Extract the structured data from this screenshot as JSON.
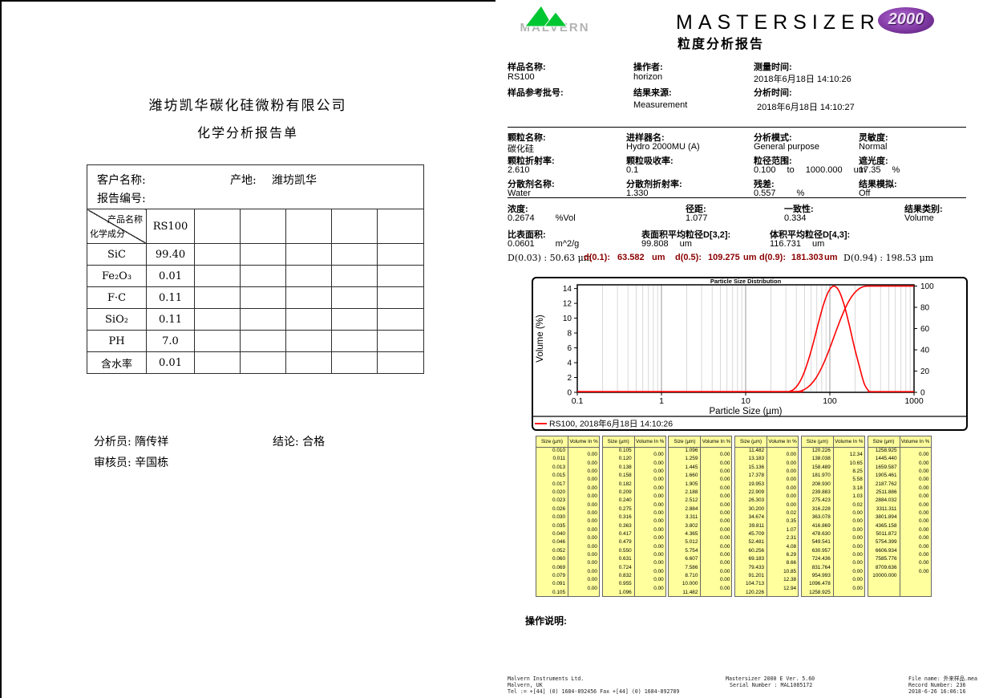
{
  "colors": {
    "curve_red": "#ff0000",
    "percentile_dark_red": "#8b0000",
    "table_yellow": "#ffff9e",
    "logo_green": "#00c632",
    "logo_purple": "#6a2c91",
    "logo_gray": "#b3b3b3"
  },
  "left_report": {
    "company": "潍坊凯华碳化硅微粉有限公司",
    "doc_title": "化学分析报告单",
    "customer_label": "客户名称:",
    "origin_label": "产地:",
    "origin_value": "潍坊凯华",
    "report_no_label": "报告编号:",
    "diagonal": {
      "top": "产品名称",
      "bottom": "化学成分"
    },
    "product_column": "RS100",
    "components": [
      {
        "name": "SiC",
        "value": "99.40"
      },
      {
        "name": "Fe₂O₃",
        "value": "0.01"
      },
      {
        "name": "F·C",
        "value": "0.11"
      },
      {
        "name": "SiO₂",
        "value": "0.11"
      },
      {
        "name": "PH",
        "value": "7.0"
      },
      {
        "name": "含水率",
        "value": "0.01"
      }
    ],
    "analyst_label": "分析员:",
    "analyst_name": "隋传祥",
    "conclusion_label": "结论:",
    "conclusion_value": "合格",
    "reviewer_label": "审核员:",
    "reviewer_name": "辛国栋"
  },
  "right_report": {
    "brand": {
      "logo_text": "MALVERN",
      "product": "MASTERSIZER",
      "model": "2000",
      "report_title": "粒度分析报告"
    },
    "sample_section": {
      "sample_name_label": "样品名称:",
      "sample_name": "RS100",
      "sample_ref_label": "样品参考批号:",
      "sample_ref": "",
      "operator_label": "操作者:",
      "operator": "horizon",
      "result_source_label": "结果来源:",
      "result_source": "Measurement",
      "measured_label": "测量时间:",
      "measured": "2018年6月18日 14:10:26",
      "analysed_label": "分析时间:",
      "analysed": "2018年6月18日 14:10:27"
    },
    "particle_section": {
      "particle_name_label": "颗粒名称:",
      "particle_name": "碳化硅",
      "particle_ri_label": "颗粒折射率:",
      "particle_ri": "2.610",
      "dispersant_label": "分散剂名称:",
      "dispersant": "Water",
      "accessory_label": "进样器名:",
      "accessory": "Hydro 2000MU (A)",
      "absorption_label": "颗粒吸收率:",
      "absorption": "0.1",
      "dispersant_ri_label": "分散剂折射率:",
      "dispersant_ri": "1.330",
      "analysis_model_label": "分析模式:",
      "analysis_model": "General purpose",
      "size_range_label": "粒径范围:",
      "size_range_from": "0.100",
      "size_range_to_word": "to",
      "size_range_to": "1000.000",
      "size_range_unit": "um",
      "residual_label": "残差:",
      "residual": "0.557",
      "residual_unit": "%",
      "sensitivity_label": "灵敏度:",
      "sensitivity": "Normal",
      "obscuration_label": "遮光度:",
      "obscuration": "17.35",
      "obscuration_unit": "%",
      "emulation_label": "结果模拟:",
      "emulation": "Off"
    },
    "result_section": {
      "concentration_label": "浓度:",
      "concentration": "0.2674",
      "concentration_unit": "%Vol",
      "span_label": "径距:",
      "span": "1.077",
      "uniformity_label": "一致性:",
      "uniformity": "0.334",
      "result_units_label": "结果类别:",
      "result_units": "Volume",
      "ssa_label": "比表面积:",
      "ssa": "0.0601",
      "ssa_unit": "m^2/g",
      "d32_label": "表面积平均粒径D[3,2]:",
      "d32": "99.808",
      "d32_unit": "um",
      "d43_label": "体积平均粒径D[4,3]:",
      "d43": "116.731",
      "d43_unit": "um"
    },
    "percentiles": {
      "d003": "D(0.03) : 50.63 μm",
      "d01_label": "d(0.1):",
      "d01": "63.582",
      "d01_unit": "um",
      "d05_label": "d(0.5):",
      "d05": "109.275",
      "d05_unit": "um",
      "d09_label": "d(0.9):",
      "d09": "181.303",
      "d09_unit": "um",
      "d094": "D(0.94) : 198.53 μm"
    },
    "operator_notes_label": "操作说明:"
  },
  "chart_data": {
    "type": "line",
    "title": "Particle Size Distribution",
    "xlabel": "Particle Size (µm)",
    "ylabel": "Volume (%)",
    "x_scale": "log",
    "xlim": [
      0.1,
      1000
    ],
    "ylim_left": [
      0,
      14.5
    ],
    "ylim_right": [
      0,
      100
    ],
    "yticks_left": [
      0,
      2,
      4,
      6,
      8,
      10,
      12,
      14
    ],
    "yticks_right": [
      0,
      20,
      40,
      60,
      80,
      100
    ],
    "xticks": [
      0.1,
      1,
      10,
      100,
      1000
    ],
    "grid": "vertical-log",
    "legend_position": "bottom-left",
    "legend": "RS100, 2018年6月18日 14:10:26",
    "series": [
      {
        "name": "volume-frequency",
        "color": "#ff0000",
        "axis": "left",
        "x": [
          0.1,
          30.2,
          32.4,
          37.2,
          42.7,
          49.0,
          56.2,
          64.6,
          74.1,
          85.1,
          97.7,
          112.2,
          128.8,
          147.9,
          169.8,
          194.9,
          223.9,
          257.0,
          295.1,
          316.2,
          1000
        ],
        "y": [
          0,
          0,
          0.02,
          0.35,
          1.07,
          2.31,
          4.08,
          6.29,
          8.66,
          10.85,
          12.38,
          12.94,
          12.34,
          10.65,
          8.25,
          5.58,
          3.18,
          1.03,
          0.02,
          0,
          0
        ]
      },
      {
        "name": "cumulative-undersize",
        "color": "#ff0000",
        "axis": "right",
        "x": [
          0.1,
          30.2,
          34.674,
          39.811,
          45.709,
          52.481,
          60.256,
          69.183,
          79.433,
          91.201,
          104.713,
          120.226,
          138.038,
          158.489,
          181.97,
          208.93,
          239.883,
          275.423,
          316.228,
          1000
        ],
        "y": [
          0,
          0,
          0.02,
          0.37,
          1.44,
          3.75,
          7.83,
          14.12,
          22.78,
          33.63,
          46.01,
          58.95,
          71.29,
          81.94,
          90.19,
          95.77,
          98.95,
          99.98,
          100,
          100
        ]
      }
    ]
  },
  "psd_tables": {
    "header": [
      "Size (µm)",
      "Volume In %"
    ],
    "tables": [
      {
        "sizes": [
          "0.010",
          "0.011",
          "0.013",
          "0.015",
          "0.017",
          "0.020",
          "0.023",
          "0.026",
          "0.030",
          "0.035",
          "0.040",
          "0.046",
          "0.052",
          "0.060",
          "0.069",
          "0.079",
          "0.091",
          "0.105"
        ],
        "volumes": [
          "0.00",
          "0.00",
          "0.00",
          "0.00",
          "0.00",
          "0.00",
          "0.00",
          "0.00",
          "0.00",
          "0.00",
          "0.00",
          "0.00",
          "0.00",
          "0.00",
          "0.00",
          "0.00",
          "0.00"
        ]
      },
      {
        "sizes": [
          "0.105",
          "0.120",
          "0.138",
          "0.158",
          "0.182",
          "0.209",
          "0.240",
          "0.275",
          "0.316",
          "0.363",
          "0.417",
          "0.479",
          "0.550",
          "0.631",
          "0.724",
          "0.832",
          "0.955",
          "1.096"
        ],
        "volumes": [
          "0.00",
          "0.00",
          "0.00",
          "0.00",
          "0.00",
          "0.00",
          "0.00",
          "0.00",
          "0.00",
          "0.00",
          "0.00",
          "0.00",
          "0.00",
          "0.00",
          "0.00",
          "0.00",
          "0.00"
        ]
      },
      {
        "sizes": [
          "1.096",
          "1.259",
          "1.445",
          "1.660",
          "1.905",
          "2.188",
          "2.512",
          "2.884",
          "3.311",
          "3.802",
          "4.365",
          "5.012",
          "5.754",
          "6.607",
          "7.586",
          "8.710",
          "10.000",
          "11.482"
        ],
        "volumes": [
          "0.00",
          "0.00",
          "0.00",
          "0.00",
          "0.00",
          "0.00",
          "0.00",
          "0.00",
          "0.00",
          "0.00",
          "0.00",
          "0.00",
          "0.00",
          "0.00",
          "0.00",
          "0.00",
          "0.00"
        ]
      },
      {
        "sizes": [
          "11.482",
          "13.183",
          "15.136",
          "17.378",
          "19.953",
          "22.909",
          "26.303",
          "30.200",
          "34.674",
          "39.811",
          "45.709",
          "52.481",
          "60.256",
          "69.183",
          "79.433",
          "91.201",
          "104.713",
          "120.226"
        ],
        "volumes": [
          "0.00",
          "0.00",
          "0.00",
          "0.00",
          "0.00",
          "0.00",
          "0.00",
          "0.02",
          "0.35",
          "1.07",
          "2.31",
          "4.08",
          "6.29",
          "8.66",
          "10.85",
          "12.38",
          "12.94"
        ]
      },
      {
        "sizes": [
          "120.226",
          "138.038",
          "158.489",
          "181.970",
          "208.930",
          "239.883",
          "275.423",
          "316.228",
          "363.078",
          "416.869",
          "478.630",
          "549.541",
          "630.957",
          "724.436",
          "831.764",
          "954.993",
          "1096.478",
          "1258.925"
        ],
        "volumes": [
          "12.34",
          "10.65",
          "8.25",
          "5.58",
          "3.18",
          "1.03",
          "0.02",
          "0.00",
          "0.00",
          "0.00",
          "0.00",
          "0.00",
          "0.00",
          "0.00",
          "0.00",
          "0.00",
          "0.00"
        ]
      },
      {
        "sizes": [
          "1258.925",
          "1445.440",
          "1659.587",
          "1905.461",
          "2187.762",
          "2511.886",
          "2884.032",
          "3311.311",
          "3801.894",
          "4365.158",
          "5011.872",
          "5754.399",
          "6606.934",
          "7585.776",
          "8709.636",
          "10000.000"
        ],
        "volumes": [
          "0.00",
          "0.00",
          "0.00",
          "0.00",
          "0.00",
          "0.00",
          "0.00",
          "0.00",
          "0.00",
          "0.00",
          "0.00",
          "0.00",
          "0.00",
          "0.00",
          "0.00"
        ]
      }
    ]
  },
  "page_footer": {
    "company_line1": "Malvern Instruments Ltd.",
    "company_line2": "Malvern, UK",
    "company_line3": "Tel := +[44] (0) 1684-892456 Fax +[44] (0) 1684-892789",
    "version_line1": "Mastersizer 2000 E Ver. 5.60",
    "version_line2": "Serial Number : MAL1085172",
    "file_line1": "File name: 外来样品.mea",
    "file_line2": "Record Number: 236",
    "file_line3": "2018-6-26 16:06:16"
  }
}
